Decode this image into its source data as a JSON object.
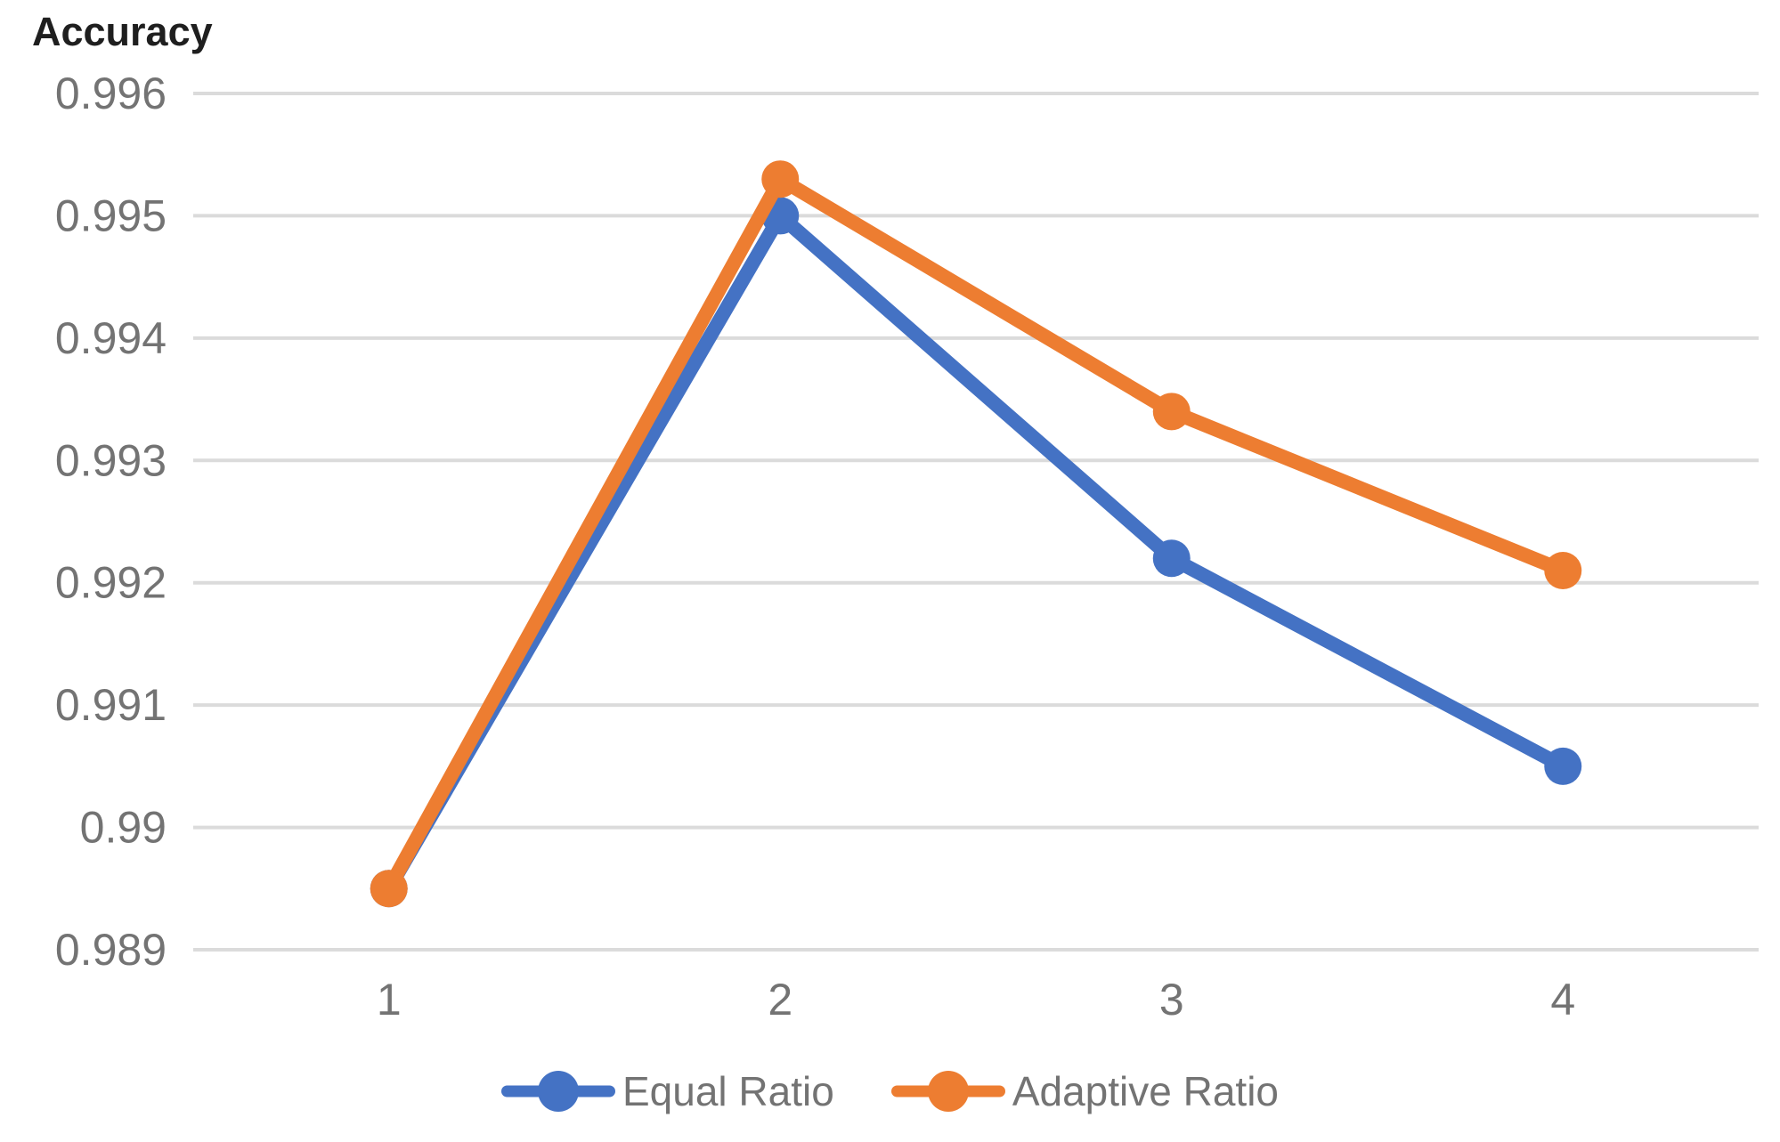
{
  "chart_data": {
    "type": "line",
    "title": "Accuracy",
    "ylabel": "Accuracy",
    "xlabel": "",
    "x": [
      1,
      2,
      3,
      4
    ],
    "x_tick_labels": [
      "1",
      "2",
      "3",
      "4"
    ],
    "series": [
      {
        "name": "Equal Ratio",
        "color": "#4472C4",
        "values": [
          0.9895,
          0.995,
          0.9922,
          0.9905
        ]
      },
      {
        "name": "Adaptive Ratio",
        "color": "#ED7D31",
        "values": [
          0.9895,
          0.9953,
          0.9934,
          0.9921
        ]
      }
    ],
    "ylim": [
      0.989,
      0.996
    ],
    "ytick_step": 0.001,
    "ytick_labels": [
      "0.996",
      "0.995",
      "0.994",
      "0.993",
      "0.992",
      "0.991",
      "0.99",
      "0.989"
    ],
    "grid": "horizontal",
    "legend_position": "bottom-center",
    "marker": "circle",
    "colors": {
      "gridline": "#DBDBDB",
      "tick_text": "#737373",
      "title_text": "#1f1f1f",
      "background": "#ffffff"
    }
  }
}
